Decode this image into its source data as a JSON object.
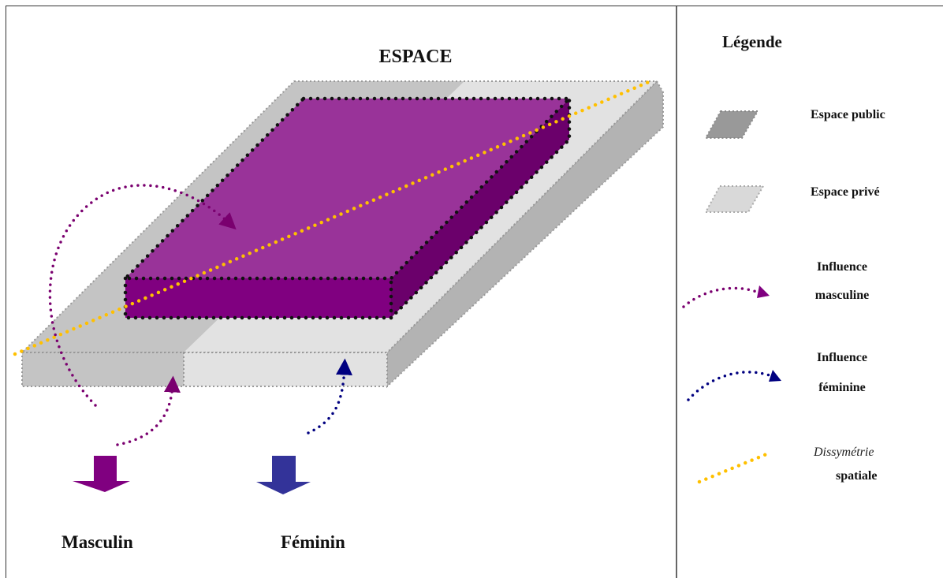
{
  "diagram": {
    "title": "ESPACE",
    "labels": {
      "masculin": "Masculin",
      "feminin": "Féminin"
    },
    "colors": {
      "public_space": "#bebebe",
      "private_space": "#e2e2e2",
      "masculine": "#7a006f",
      "masculine_top": "#993399",
      "feminine": "#333399",
      "feminine_dots": "#000080",
      "dissymmetry": "#ffc000"
    }
  },
  "legend": {
    "title": "Légende",
    "items": [
      {
        "label": "Espace public",
        "icon": "public-space-swatch-icon"
      },
      {
        "label": "Espace privé",
        "icon": "private-space-swatch-icon"
      },
      {
        "label_line1": "Influence",
        "label_line2": "masculine",
        "icon": "masculine-influence-arrow-icon"
      },
      {
        "label_line1": "Influence",
        "label_line2": "féminine",
        "icon": "feminine-influence-arrow-icon"
      },
      {
        "label_line1": "Dissymétrie",
        "label_line2": "spatiale",
        "icon": "dissymmetry-line-icon"
      }
    ]
  }
}
